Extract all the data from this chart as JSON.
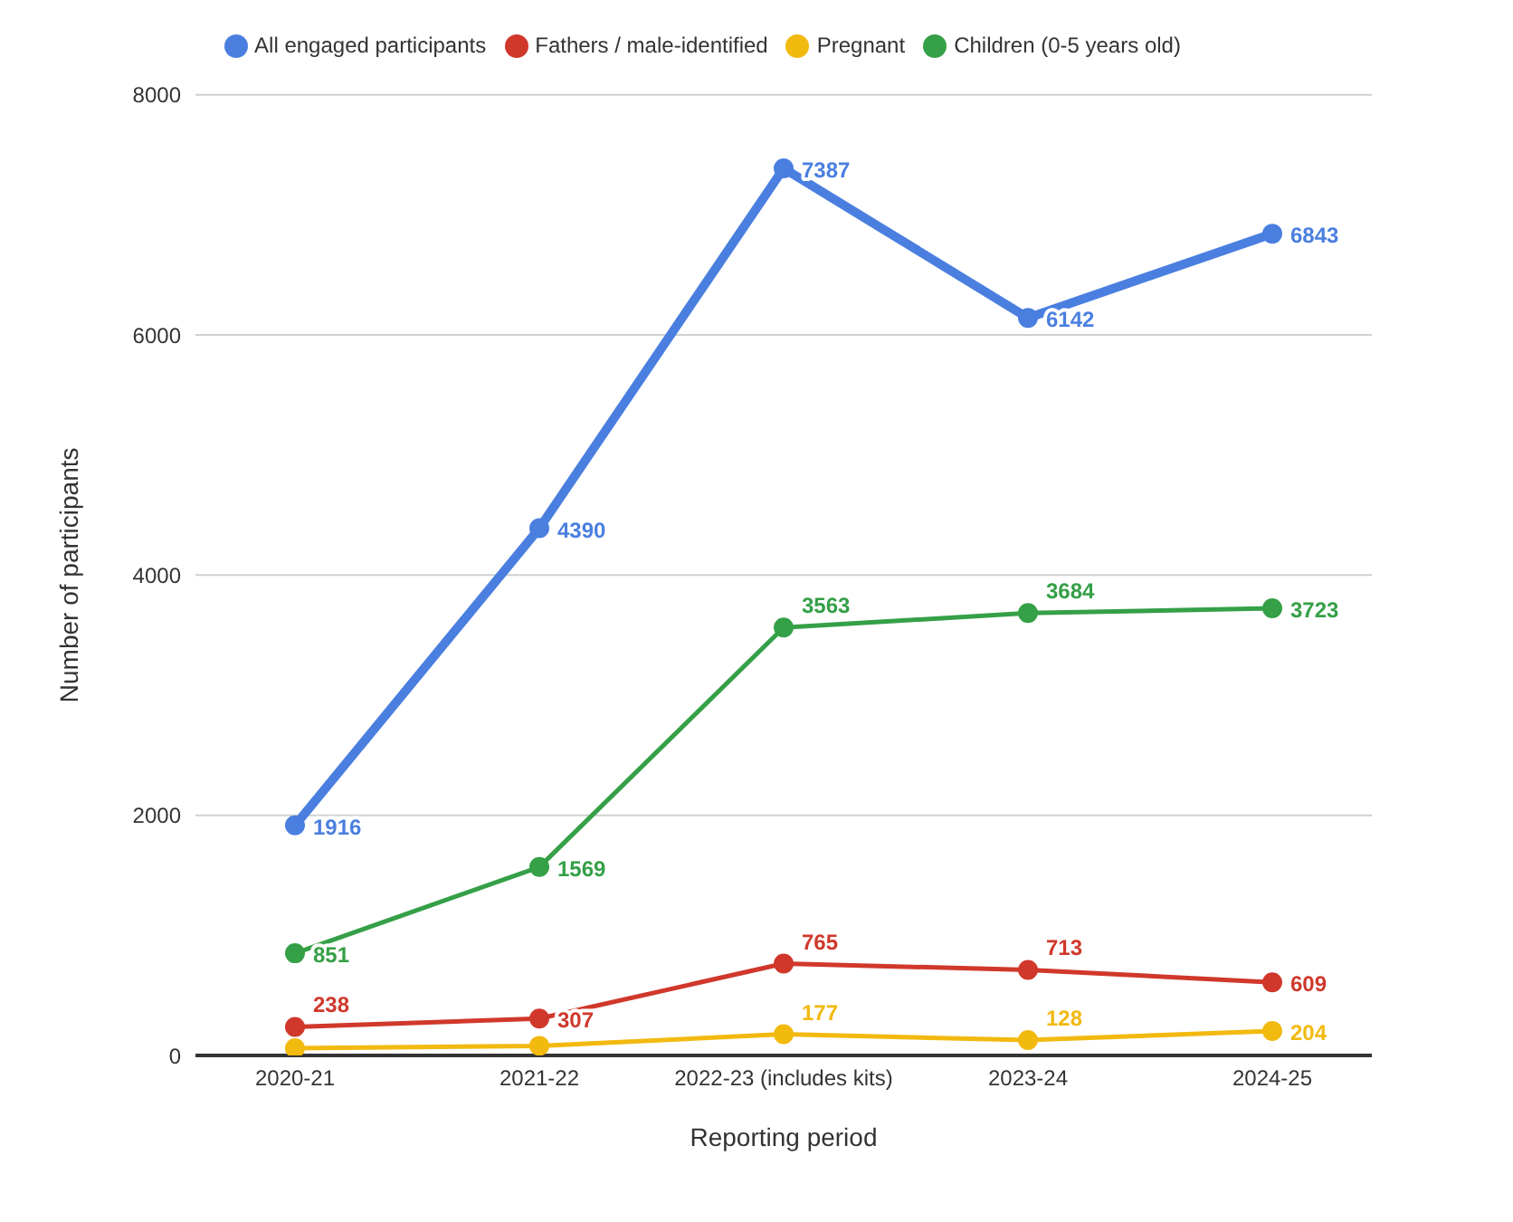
{
  "chart_data": {
    "type": "line",
    "xlabel": "Reporting period",
    "ylabel": "Number of participants",
    "categories": [
      "2020-21",
      "2021-22",
      "2022-23 (includes kits)",
      "2023-24",
      "2024-25"
    ],
    "series": [
      {
        "name": "All engaged participants",
        "color": "#4a7fe0",
        "values": [
          1916,
          4390,
          7387,
          6142,
          6843
        ],
        "value_labels": [
          "1916",
          "4390",
          "7387",
          "6142",
          "6843"
        ]
      },
      {
        "name": "Fathers / male-identified",
        "color": "#d0382b",
        "values": [
          238,
          307,
          765,
          713,
          609
        ],
        "value_labels": [
          "238",
          "307",
          "765",
          "713",
          "609"
        ]
      },
      {
        "name": "Pregnant",
        "color": "#f2b90f",
        "values": [
          60,
          80,
          177,
          128,
          204
        ],
        "value_labels": [
          null,
          null,
          "177",
          "128",
          "204"
        ]
      },
      {
        "name": "Children (0-5 years old)",
        "color": "#35a047",
        "values": [
          851,
          1569,
          3563,
          3684,
          3723
        ],
        "value_labels": [
          "851",
          "1569",
          "3563",
          "3684",
          "3723"
        ]
      }
    ],
    "ylim": [
      0,
      8000
    ],
    "yticks": [
      0,
      2000,
      4000,
      6000,
      8000
    ],
    "grid": "y",
    "legend": "top",
    "marker": "circle",
    "line_style": "solid"
  }
}
